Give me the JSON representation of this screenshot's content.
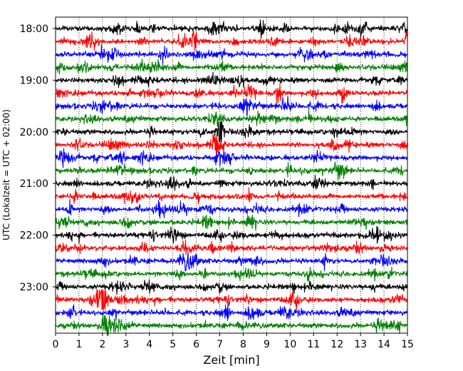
{
  "chart_data": {
    "type": "line",
    "title": "",
    "xlabel": "Zeit  [min]",
    "ylabel": "UTC (Lokalzeit = UTC + 02:00)",
    "xlim": [
      0,
      15
    ],
    "x_ticks": [
      0,
      1,
      2,
      3,
      4,
      5,
      6,
      7,
      8,
      9,
      10,
      11,
      12,
      13,
      14,
      15
    ],
    "y_tick_labels": [
      "18:00",
      "19:00",
      "20:00",
      "21:00",
      "22:00",
      "23:00"
    ],
    "trace_interval_minutes": 15,
    "first_trace_start": "18:00",
    "trace_start_times": [
      "18:00",
      "18:15",
      "18:30",
      "18:45",
      "19:00",
      "19:15",
      "19:30",
      "19:45",
      "20:00",
      "20:15",
      "20:30",
      "20:45",
      "21:00",
      "21:15",
      "21:30",
      "21:45",
      "22:00",
      "22:15",
      "22:30",
      "22:45",
      "23:00",
      "23:15",
      "23:30",
      "23:45"
    ],
    "trace_colors": [
      "#000000",
      "#ff0000",
      "#0000ff",
      "#008000"
    ],
    "grid": "vertical dotted",
    "legend": "none",
    "notable_events": [
      {
        "trace": "18:00",
        "minute": 6.7
      },
      {
        "trace": "18:00",
        "minute": 8.8
      },
      {
        "trace": "18:15",
        "minute": 5.9
      },
      {
        "trace": "18:15",
        "minute": 15.0
      },
      {
        "trace": "19:15",
        "minute": 9.5
      },
      {
        "trace": "19:15",
        "minute": 12.3
      },
      {
        "trace": "20:00",
        "minute": 7.0
      },
      {
        "trace": "20:15",
        "minute": 6.8
      },
      {
        "trace": "21:30",
        "minute": 0.6
      },
      {
        "trace": "23:15",
        "minute": 1.9
      },
      {
        "trace": "23:15",
        "minute": 2.1
      },
      {
        "trace": "23:30",
        "minute": 0.7
      },
      {
        "trace": "23:45",
        "minute": 2.1
      }
    ]
  }
}
